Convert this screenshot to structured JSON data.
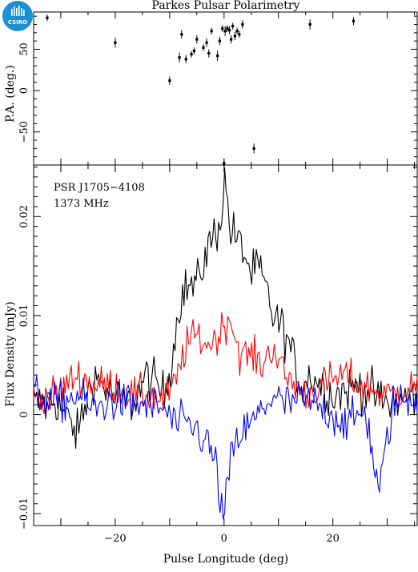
{
  "chart_data": [
    {
      "type": "scatter",
      "title": "Parkes Pulsar Polarimetry",
      "ylabel": "P.A. (deg.)",
      "xlim": [
        -35,
        35.5
      ],
      "ylim": [
        -90,
        95
      ],
      "yticks": [
        -50,
        0,
        50
      ],
      "series": [
        {
          "points": [
            [
              -32.5,
              88,
              4
            ],
            [
              -20,
              58,
              6
            ],
            [
              -10,
              12,
              5
            ],
            [
              -8.2,
              40,
              6
            ],
            [
              -7.8,
              68,
              5
            ],
            [
              -7,
              38,
              5
            ],
            [
              -6,
              44,
              4
            ],
            [
              -5.5,
              48,
              4
            ],
            [
              -5,
              62,
              5
            ],
            [
              -3.8,
              52,
              4
            ],
            [
              -3.2,
              58,
              5
            ],
            [
              -2.8,
              45,
              5
            ],
            [
              -2.3,
              72,
              4
            ],
            [
              -1.2,
              42,
              6
            ],
            [
              -0.8,
              60,
              5
            ],
            [
              -0.3,
              75,
              4
            ],
            [
              0.2,
              72,
              6
            ],
            [
              0.6,
              75,
              4
            ],
            [
              1,
              73,
              5
            ],
            [
              1.3,
              62,
              5
            ],
            [
              1.6,
              78,
              4
            ],
            [
              2,
              66,
              5
            ],
            [
              2.4,
              72,
              4
            ],
            [
              2.8,
              68,
              4
            ],
            [
              3.4,
              80,
              5
            ],
            [
              0,
              -88,
              6
            ],
            [
              5.5,
              -70,
              6
            ],
            [
              15.8,
              80,
              6
            ],
            [
              23.8,
              84,
              5
            ]
          ]
        }
      ]
    },
    {
      "type": "line",
      "xlabel": "Pulse Longitude (deg)",
      "ylabel": "Flux Density (mJy)",
      "xlim": [
        -35,
        35.5
      ],
      "ylim": [
        -0.0112,
        0.0252
      ],
      "xticks": [
        -20,
        0,
        20
      ],
      "yticks": [
        -0.01,
        0,
        0.01,
        0.02
      ],
      "ytick_labels": [
        "−0.01",
        "0",
        "0.01",
        "0.02"
      ],
      "annotations": [
        "PSR J1705−4108",
        "1373 MHz"
      ],
      "series": [
        {
          "color": "#000000",
          "x": [
            -35,
            -31,
            -27,
            -24,
            -20,
            -17,
            -14,
            -11,
            -9.5,
            -8,
            -6.5,
            -5,
            -3.5,
            -2,
            -1,
            -0.3,
            0,
            0.4,
            1,
            2,
            3,
            4,
            5,
            6,
            7.5,
            9,
            10.5,
            12,
            14,
            16,
            20,
            25,
            30,
            35.5
          ],
          "values": [
            0.001,
            0.0015,
            -0.002,
            0.004,
            0.0015,
            0.001,
            0.004,
            0.002,
            0.006,
            0.012,
            0.013,
            0.013,
            0.016,
            0.018,
            0.019,
            0.021,
            0.024,
            0.023,
            0.019,
            0.018,
            0.017,
            0.016,
            0.014,
            0.015,
            0.013,
            0.01,
            0.009,
            0.007,
            0.003,
            0.004,
            0.002,
            0.003,
            0.001,
            0.002
          ]
        },
        {
          "color": "#ff0000",
          "x": [
            -35,
            -31,
            -27,
            -24,
            -20,
            -17,
            -14,
            -11,
            -9,
            -7,
            -5,
            -3,
            -1,
            0,
            1,
            2,
            3,
            5,
            7,
            9,
            11,
            13,
            15,
            18,
            22,
            25,
            30,
            35.5
          ],
          "values": [
            0.0015,
            0.002,
            0.004,
            0.003,
            0.003,
            0.002,
            0.002,
            0.0015,
            0.003,
            0.007,
            0.008,
            0.007,
            0.008,
            0.009,
            0.01,
            0.008,
            0.006,
            0.006,
            0.005,
            0.007,
            0.004,
            0.003,
            0.002,
            0.003,
            0.004,
            0.003,
            0.002,
            0.003
          ]
        },
        {
          "color": "#0000ff",
          "x": [
            -35,
            -31,
            -27,
            -24,
            -20,
            -17,
            -14,
            -11,
            -9,
            -7,
            -5,
            -3,
            -1.5,
            -0.6,
            0,
            0.6,
            1.5,
            3,
            5,
            7,
            9,
            11,
            14,
            17,
            20,
            23,
            26,
            28.5,
            31,
            35.5
          ],
          "values": [
            0.002,
            0.001,
            0.002,
            0.0005,
            0.0015,
            0.001,
            0.001,
            0.0005,
            -0.001,
            -0.001,
            -0.0015,
            -0.003,
            -0.005,
            -0.009,
            -0.011,
            -0.007,
            -0.004,
            -0.002,
            -0.001,
            0.0005,
            0.002,
            0.001,
            0.0015,
            0.001,
            0,
            -0.001,
            0.0005,
            -0.008,
            0.001,
            0.002
          ]
        }
      ]
    }
  ],
  "logo": {
    "text": "CSIRO",
    "color": "#1b8fd2"
  }
}
